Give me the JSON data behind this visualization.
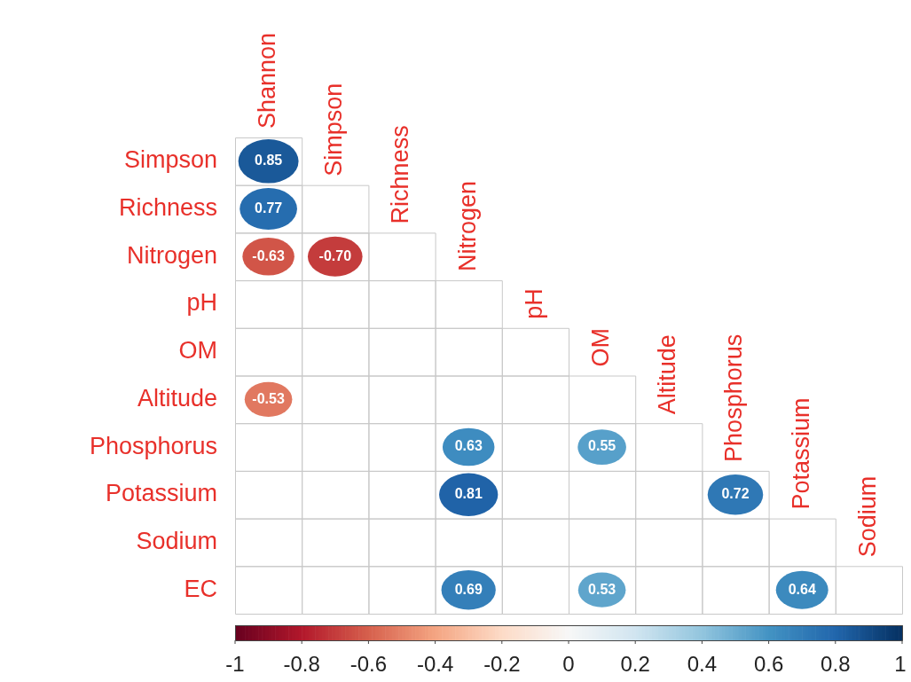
{
  "chart_data": {
    "type": "heatmap",
    "categories": [
      "Shannon",
      "Simpson",
      "Richness",
      "Nitrogen",
      "pH",
      "OM",
      "Altitude",
      "Phosphorus",
      "Potassium",
      "Sodium"
    ],
    "y_categories": [
      "Simpson",
      "Richness",
      "Nitrogen",
      "pH",
      "OM",
      "Altitude",
      "Phosphorus",
      "Potassium",
      "Sodium",
      "EC"
    ],
    "cells": [
      [
        0.85,
        null,
        null,
        null,
        null,
        null,
        null,
        null,
        null,
        null
      ],
      [
        0.77,
        null,
        null,
        null,
        null,
        null,
        null,
        null,
        null,
        null
      ],
      [
        -0.63,
        -0.7,
        null,
        null,
        null,
        null,
        null,
        null,
        null,
        null
      ],
      [
        null,
        null,
        null,
        null,
        null,
        null,
        null,
        null,
        null,
        null
      ],
      [
        null,
        null,
        null,
        null,
        null,
        null,
        null,
        null,
        null,
        null
      ],
      [
        -0.53,
        null,
        null,
        null,
        null,
        null,
        null,
        null,
        null,
        null
      ],
      [
        null,
        null,
        null,
        0.63,
        null,
        0.55,
        null,
        null,
        null,
        null
      ],
      [
        null,
        null,
        null,
        0.81,
        null,
        null,
        null,
        0.72,
        null,
        null
      ],
      [
        null,
        null,
        null,
        null,
        null,
        null,
        null,
        null,
        null,
        null
      ],
      [
        null,
        null,
        null,
        0.69,
        null,
        0.53,
        null,
        null,
        0.64,
        null
      ]
    ],
    "cell_labels": [
      [
        "0.85",
        null,
        null,
        null,
        null,
        null,
        null,
        null,
        null,
        null
      ],
      [
        "0.77",
        null,
        null,
        null,
        null,
        null,
        null,
        null,
        null,
        null
      ],
      [
        "-0.63",
        "-0.70",
        null,
        null,
        null,
        null,
        null,
        null,
        null,
        null
      ],
      [
        null,
        null,
        null,
        null,
        null,
        null,
        null,
        null,
        null,
        null
      ],
      [
        null,
        null,
        null,
        null,
        null,
        null,
        null,
        null,
        null,
        null
      ],
      [
        "-0.53",
        null,
        null,
        null,
        null,
        null,
        null,
        null,
        null,
        null
      ],
      [
        null,
        null,
        null,
        "0.63",
        null,
        "0.55",
        null,
        null,
        null,
        null
      ],
      [
        null,
        null,
        null,
        "0.81",
        null,
        null,
        null,
        "0.72",
        null,
        null
      ],
      [
        null,
        null,
        null,
        null,
        null,
        null,
        null,
        null,
        null,
        null
      ],
      [
        null,
        null,
        null,
        "0.69",
        null,
        "0.53",
        null,
        null,
        "0.64",
        null
      ]
    ],
    "data_labels": true,
    "clim": [
      -1,
      1
    ],
    "cticks": [
      -1,
      -0.8,
      -0.6,
      -0.4,
      -0.2,
      0,
      0.2,
      0.4,
      0.6,
      0.8,
      1
    ]
  }
}
